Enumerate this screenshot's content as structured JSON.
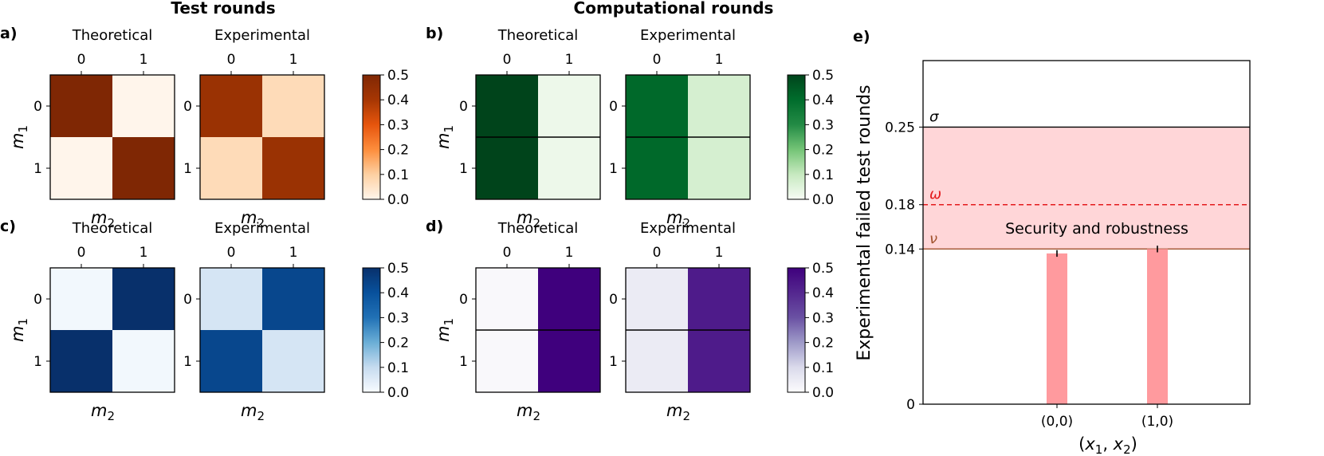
{
  "figure": {
    "title_test": "Test rounds",
    "title_comp": "Computational rounds",
    "panel_labels": [
      "a)",
      "b)",
      "c)",
      "d)",
      "e)"
    ],
    "sub_titles": [
      "Theoretical",
      "Experimental"
    ],
    "axis_ticks": [
      "0",
      "1"
    ],
    "m1_label": "m",
    "m1_sub": "1",
    "m2_label": "m",
    "m2_sub": "2",
    "colorbar_ticks": [
      "0.0",
      "0.1",
      "0.2",
      "0.3",
      "0.4",
      "0.5"
    ]
  },
  "chart_data": [
    {
      "type": "heatmap",
      "panel": "a)",
      "group": "Test rounds",
      "cmap": "Oranges",
      "vmin": 0,
      "vmax": 0.5,
      "rows_label": "m1",
      "cols_label": "m2",
      "theoretical": [
        [
          0.5,
          0.0
        ],
        [
          0.0,
          0.5
        ]
      ],
      "experimental": [
        [
          0.43,
          0.07
        ],
        [
          0.07,
          0.43
        ]
      ],
      "row_separator": false
    },
    {
      "type": "heatmap",
      "panel": "b)",
      "group": "Computational rounds",
      "cmap": "Greens",
      "vmin": 0,
      "vmax": 0.5,
      "rows_label": "m1",
      "cols_label": "m2",
      "theoretical": [
        [
          0.5,
          0.02
        ],
        [
          0.5,
          0.02
        ]
      ],
      "experimental": [
        [
          0.41,
          0.07
        ],
        [
          0.41,
          0.07
        ]
      ],
      "row_separator": true
    },
    {
      "type": "heatmap",
      "panel": "c)",
      "group": "Test rounds",
      "cmap": "Blues",
      "vmin": 0,
      "vmax": 0.5,
      "rows_label": "m1",
      "cols_label": "m2",
      "theoretical": [
        [
          0.01,
          0.5
        ],
        [
          0.5,
          0.01
        ]
      ],
      "experimental": [
        [
          0.07,
          0.43
        ],
        [
          0.43,
          0.07
        ]
      ],
      "row_separator": false
    },
    {
      "type": "heatmap",
      "panel": "d)",
      "group": "Computational rounds",
      "cmap": "Purples",
      "vmin": 0,
      "vmax": 0.5,
      "rows_label": "m1",
      "cols_label": "m2",
      "theoretical": [
        [
          0.01,
          0.5
        ],
        [
          0.01,
          0.5
        ]
      ],
      "experimental": [
        [
          0.05,
          0.43
        ],
        [
          0.05,
          0.43
        ]
      ],
      "row_separator": true
    },
    {
      "type": "bar",
      "panel": "e)",
      "categories": [
        "(0,0)",
        "(1,0)"
      ],
      "values": [
        0.136,
        0.14
      ],
      "errors": [
        0.003,
        0.003
      ],
      "xlabel": "(x1, x2)",
      "xlabel_parts": {
        "open": "(",
        "v1": "x",
        "s1": "1",
        "sep": ", ",
        "v2": "x",
        "s2": "2",
        "close": ")"
      },
      "ylabel": "Experimental failed test rounds",
      "ylim": [
        0,
        0.31
      ],
      "yticks": [
        0,
        0.14,
        0.18,
        0.25
      ],
      "ytick_labels": [
        "0",
        "0.14",
        "0.18",
        "0.25"
      ],
      "thresholds": [
        {
          "symbol": "σ",
          "value": 0.25,
          "style": "solid",
          "color": "#000000"
        },
        {
          "symbol": "ω",
          "value": 0.18,
          "style": "dashed",
          "color": "#e41a1c"
        },
        {
          "symbol": "ν",
          "value": 0.14,
          "style": "solid",
          "color": "#a0522d"
        }
      ],
      "band": {
        "from": 0.14,
        "to": 0.25,
        "label": "Security and robustness",
        "color": "#ffd6d8"
      },
      "bar_color": "#ff9a9e"
    }
  ]
}
